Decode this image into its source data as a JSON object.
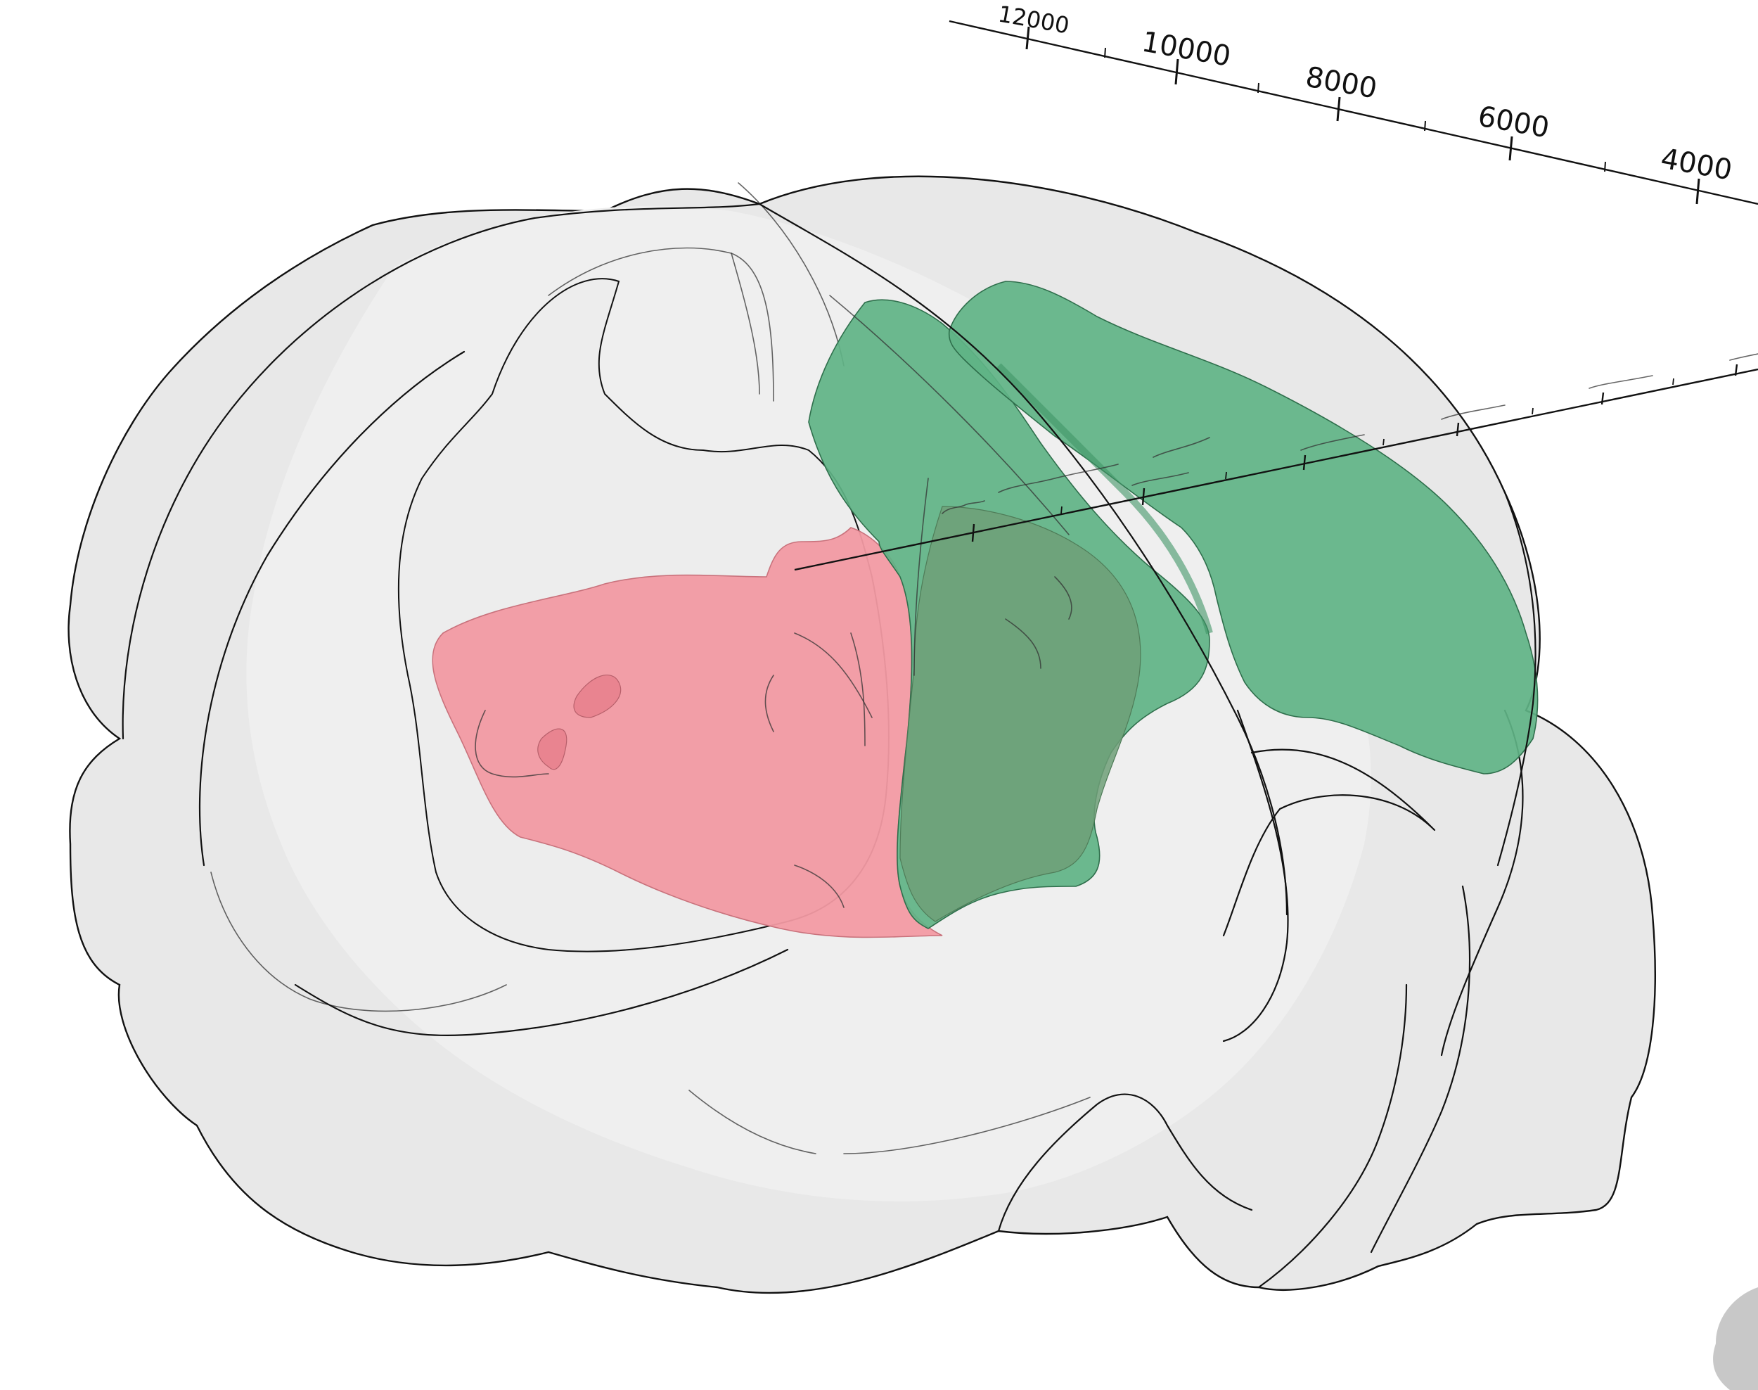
{
  "scene": {
    "background_color": "#ffffff",
    "colors": {
      "brain_fill": "#e6e6e6",
      "inner_fill": "#efefef",
      "region_red": "#f29aa3",
      "region_green": "#5fb386",
      "region_green_dark": "#4fa877",
      "overlap": "#6f9e76",
      "outline": "#111111"
    }
  },
  "axis_top": {
    "labels": [
      "12000",
      "10000",
      "8000",
      "6000",
      "4000"
    ]
  },
  "axis_depth": {
    "labels": [
      "",
      "",
      "",
      "",
      "",
      "",
      "",
      ""
    ]
  },
  "regions": [
    {
      "id": "brain-shell"
    },
    {
      "id": "red-region"
    },
    {
      "id": "green-region-front"
    },
    {
      "id": "green-region-back"
    }
  ]
}
